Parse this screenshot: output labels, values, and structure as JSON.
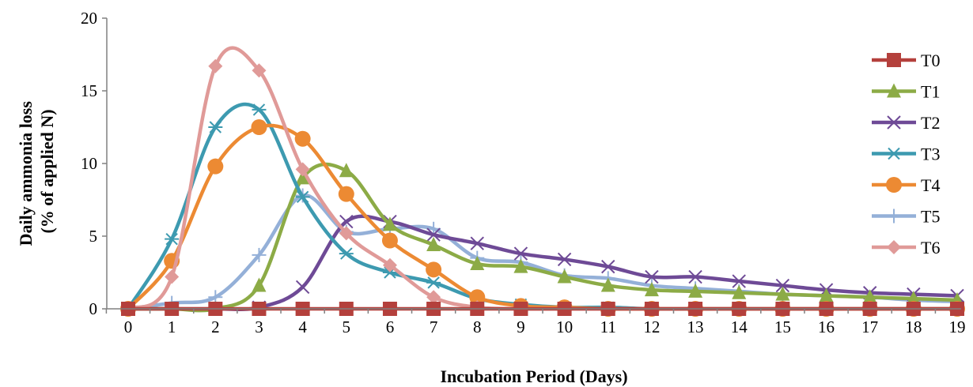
{
  "chart_data": {
    "type": "line",
    "title": "",
    "xlabel": "Incubation Period (Days)",
    "ylabel_line1": "Daily ammonia loss",
    "ylabel_line2": "(% of applied N)",
    "xlim": [
      0,
      19
    ],
    "ylim": [
      0,
      20
    ],
    "yticks": [
      0,
      5,
      10,
      15,
      20
    ],
    "x": [
      0,
      1,
      2,
      3,
      4,
      5,
      6,
      7,
      8,
      9,
      10,
      11,
      12,
      13,
      14,
      15,
      16,
      17,
      18,
      19
    ],
    "grid": false,
    "smooth": true,
    "legend_position": "right",
    "series": [
      {
        "name": "T0",
        "color": "#b4403c",
        "marker": "square",
        "values": [
          0,
          0,
          0,
          0,
          0,
          0,
          0,
          0,
          0,
          0,
          0,
          0,
          0,
          0,
          0,
          0,
          0,
          0,
          0,
          0
        ]
      },
      {
        "name": "T1",
        "color": "#8cab46",
        "marker": "triangle",
        "values": [
          0,
          0,
          0,
          1.6,
          9.0,
          9.5,
          5.8,
          4.4,
          3.1,
          2.9,
          2.2,
          1.6,
          1.3,
          1.2,
          1.1,
          1.0,
          0.9,
          0.8,
          0.7,
          0.6
        ]
      },
      {
        "name": "T2",
        "color": "#6e4a96",
        "marker": "x",
        "values": [
          0,
          0,
          0,
          0.1,
          1.5,
          6.0,
          6.0,
          5.1,
          4.5,
          3.8,
          3.4,
          2.9,
          2.2,
          2.2,
          1.9,
          1.6,
          1.3,
          1.1,
          1.0,
          0.9
        ]
      },
      {
        "name": "T3",
        "color": "#3d9ab0",
        "marker": "asterisk",
        "values": [
          0,
          4.8,
          12.5,
          13.7,
          7.7,
          3.8,
          2.5,
          1.8,
          0.7,
          0.3,
          0.1,
          0.1,
          0,
          0,
          0,
          0,
          0,
          0,
          0,
          0
        ]
      },
      {
        "name": "T4",
        "color": "#ec8a33",
        "marker": "circle",
        "values": [
          0,
          3.3,
          9.8,
          12.5,
          11.7,
          7.9,
          4.7,
          2.7,
          0.8,
          0.2,
          0.1,
          0,
          0,
          0,
          0,
          0,
          0,
          0,
          0,
          0
        ]
      },
      {
        "name": "T5",
        "color": "#94b0d8",
        "marker": "plus",
        "values": [
          0,
          0.4,
          0.8,
          3.7,
          7.8,
          5.3,
          5.5,
          5.5,
          3.5,
          3.2,
          2.3,
          2.1,
          1.6,
          1.4,
          1.2,
          1.0,
          0.9,
          0.8,
          0.6,
          0.5
        ]
      },
      {
        "name": "T6",
        "color": "#e09a98",
        "marker": "diamond",
        "values": [
          0,
          2.2,
          16.7,
          16.4,
          9.6,
          5.2,
          3.0,
          0.8,
          0.1,
          0,
          0,
          0,
          0,
          0,
          0,
          0,
          0,
          0,
          0,
          0
        ]
      }
    ]
  }
}
